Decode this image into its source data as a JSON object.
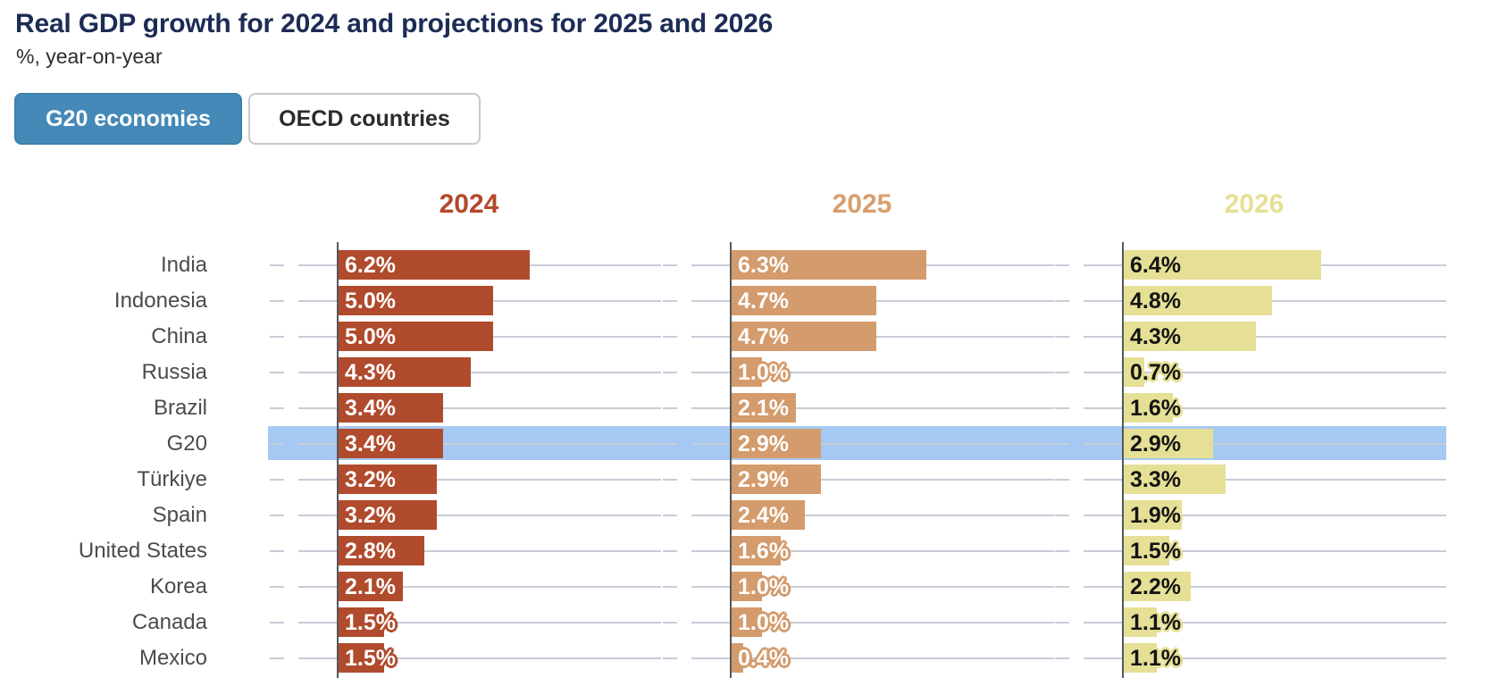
{
  "header": {
    "title": "Real GDP growth for 2024 and projections for 2025 and 2026",
    "subtitle": "%, year-on-year"
  },
  "toggle": {
    "options": [
      {
        "label": "G20 economies",
        "active": true
      },
      {
        "label": "OECD countries",
        "active": false
      }
    ],
    "active_bg": "#4489b7",
    "active_border": "#3e80ab",
    "active_text": "#ffffff",
    "inactive_text": "#2b2b2b"
  },
  "chart_data": {
    "type": "bar",
    "orientation": "horizontal",
    "title": "Real GDP growth for 2024 and projections for 2025 and 2026",
    "subtitle": "%, year-on-year",
    "unit": "%",
    "xlim": [
      0,
      10.4
    ],
    "grid": true,
    "grid_color": "#c6cdd7",
    "axis_color": "#54585c",
    "category_label_color": "#4b4b4f",
    "highlighted_category": "G20",
    "highlight_color": "#a6c9f3",
    "categories": [
      "India",
      "Indonesia",
      "China",
      "Russia",
      "Brazil",
      "G20",
      "Türkiye",
      "Spain",
      "United States",
      "Korea",
      "Canada",
      "Mexico"
    ],
    "series": [
      {
        "name": "2024",
        "header_color": "#b2492b",
        "bar_color": "#b04b2d",
        "label_text_color": "#ffffff",
        "values": [
          6.2,
          5.0,
          5.0,
          4.3,
          3.4,
          3.4,
          3.2,
          3.2,
          2.8,
          2.1,
          1.5,
          1.5
        ]
      },
      {
        "name": "2025",
        "header_color": "#d99e6d",
        "bar_color": "#d49b6c",
        "label_text_color": "#ffffff",
        "values": [
          6.3,
          4.7,
          4.7,
          1.0,
          2.1,
          2.9,
          2.9,
          2.4,
          1.6,
          1.0,
          1.0,
          0.4
        ]
      },
      {
        "name": "2026",
        "header_color": "#e6e094",
        "bar_color": "#e5e096",
        "label_text_color": "#141414",
        "values": [
          6.4,
          4.8,
          4.3,
          0.7,
          1.6,
          2.9,
          3.3,
          1.9,
          1.5,
          2.2,
          1.1,
          1.1
        ]
      }
    ]
  }
}
